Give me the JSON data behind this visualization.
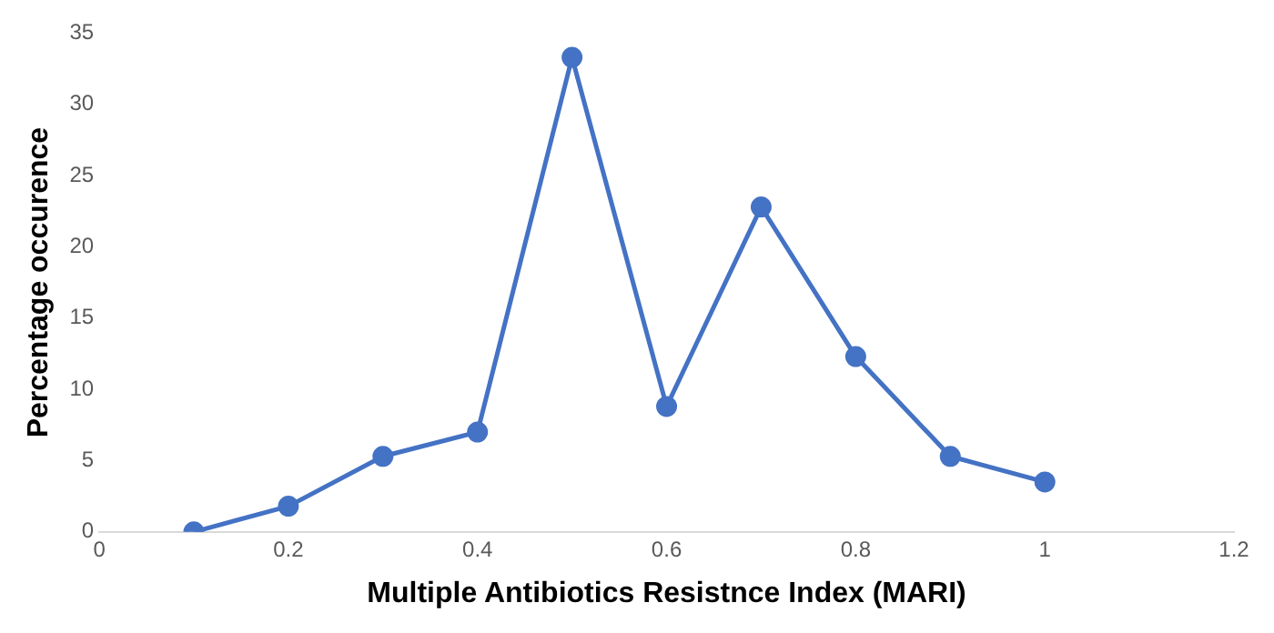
{
  "chart_data": {
    "type": "line",
    "xlabel": "Multiple Antibiotics Resistnce Index (MARI)",
    "ylabel": "Percentage occurence",
    "x": [
      0.1,
      0.2,
      0.3,
      0.4,
      0.5,
      0.6,
      0.7,
      0.8,
      0.9,
      1
    ],
    "series": [
      {
        "color": "#4472c4",
        "values": [
          0,
          1.8,
          5.3,
          7,
          33.3,
          8.8,
          22.8,
          12.3,
          5.3,
          3.5
        ]
      }
    ],
    "xlim": [
      0,
      1.2
    ],
    "xticks": [
      0,
      0.2,
      0.4,
      0.6,
      0.8,
      1,
      1.2
    ],
    "ylim": [
      0,
      35
    ],
    "yticks": [
      0,
      5,
      10,
      15,
      20,
      25,
      30,
      35
    ],
    "grid": false,
    "legend": false,
    "marker": "circle",
    "line_style": "solid"
  }
}
